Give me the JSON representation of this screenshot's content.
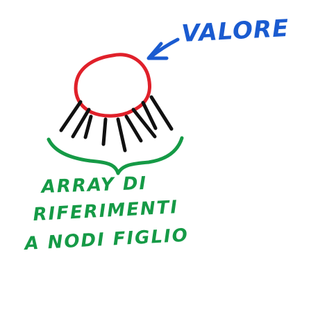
{
  "labels": {
    "value_label": "VALORE",
    "children_line_1": "ARRAY DI",
    "children_line_2": "RIFERIMENTI",
    "children_line_3": "A NODI FIGLIO"
  },
  "colors": {
    "background": "#ffffff",
    "node_outline": "#e0202a",
    "child_refs": "#111111",
    "value_annotation": "#1a5bd0",
    "children_annotation": "#159a46"
  }
}
